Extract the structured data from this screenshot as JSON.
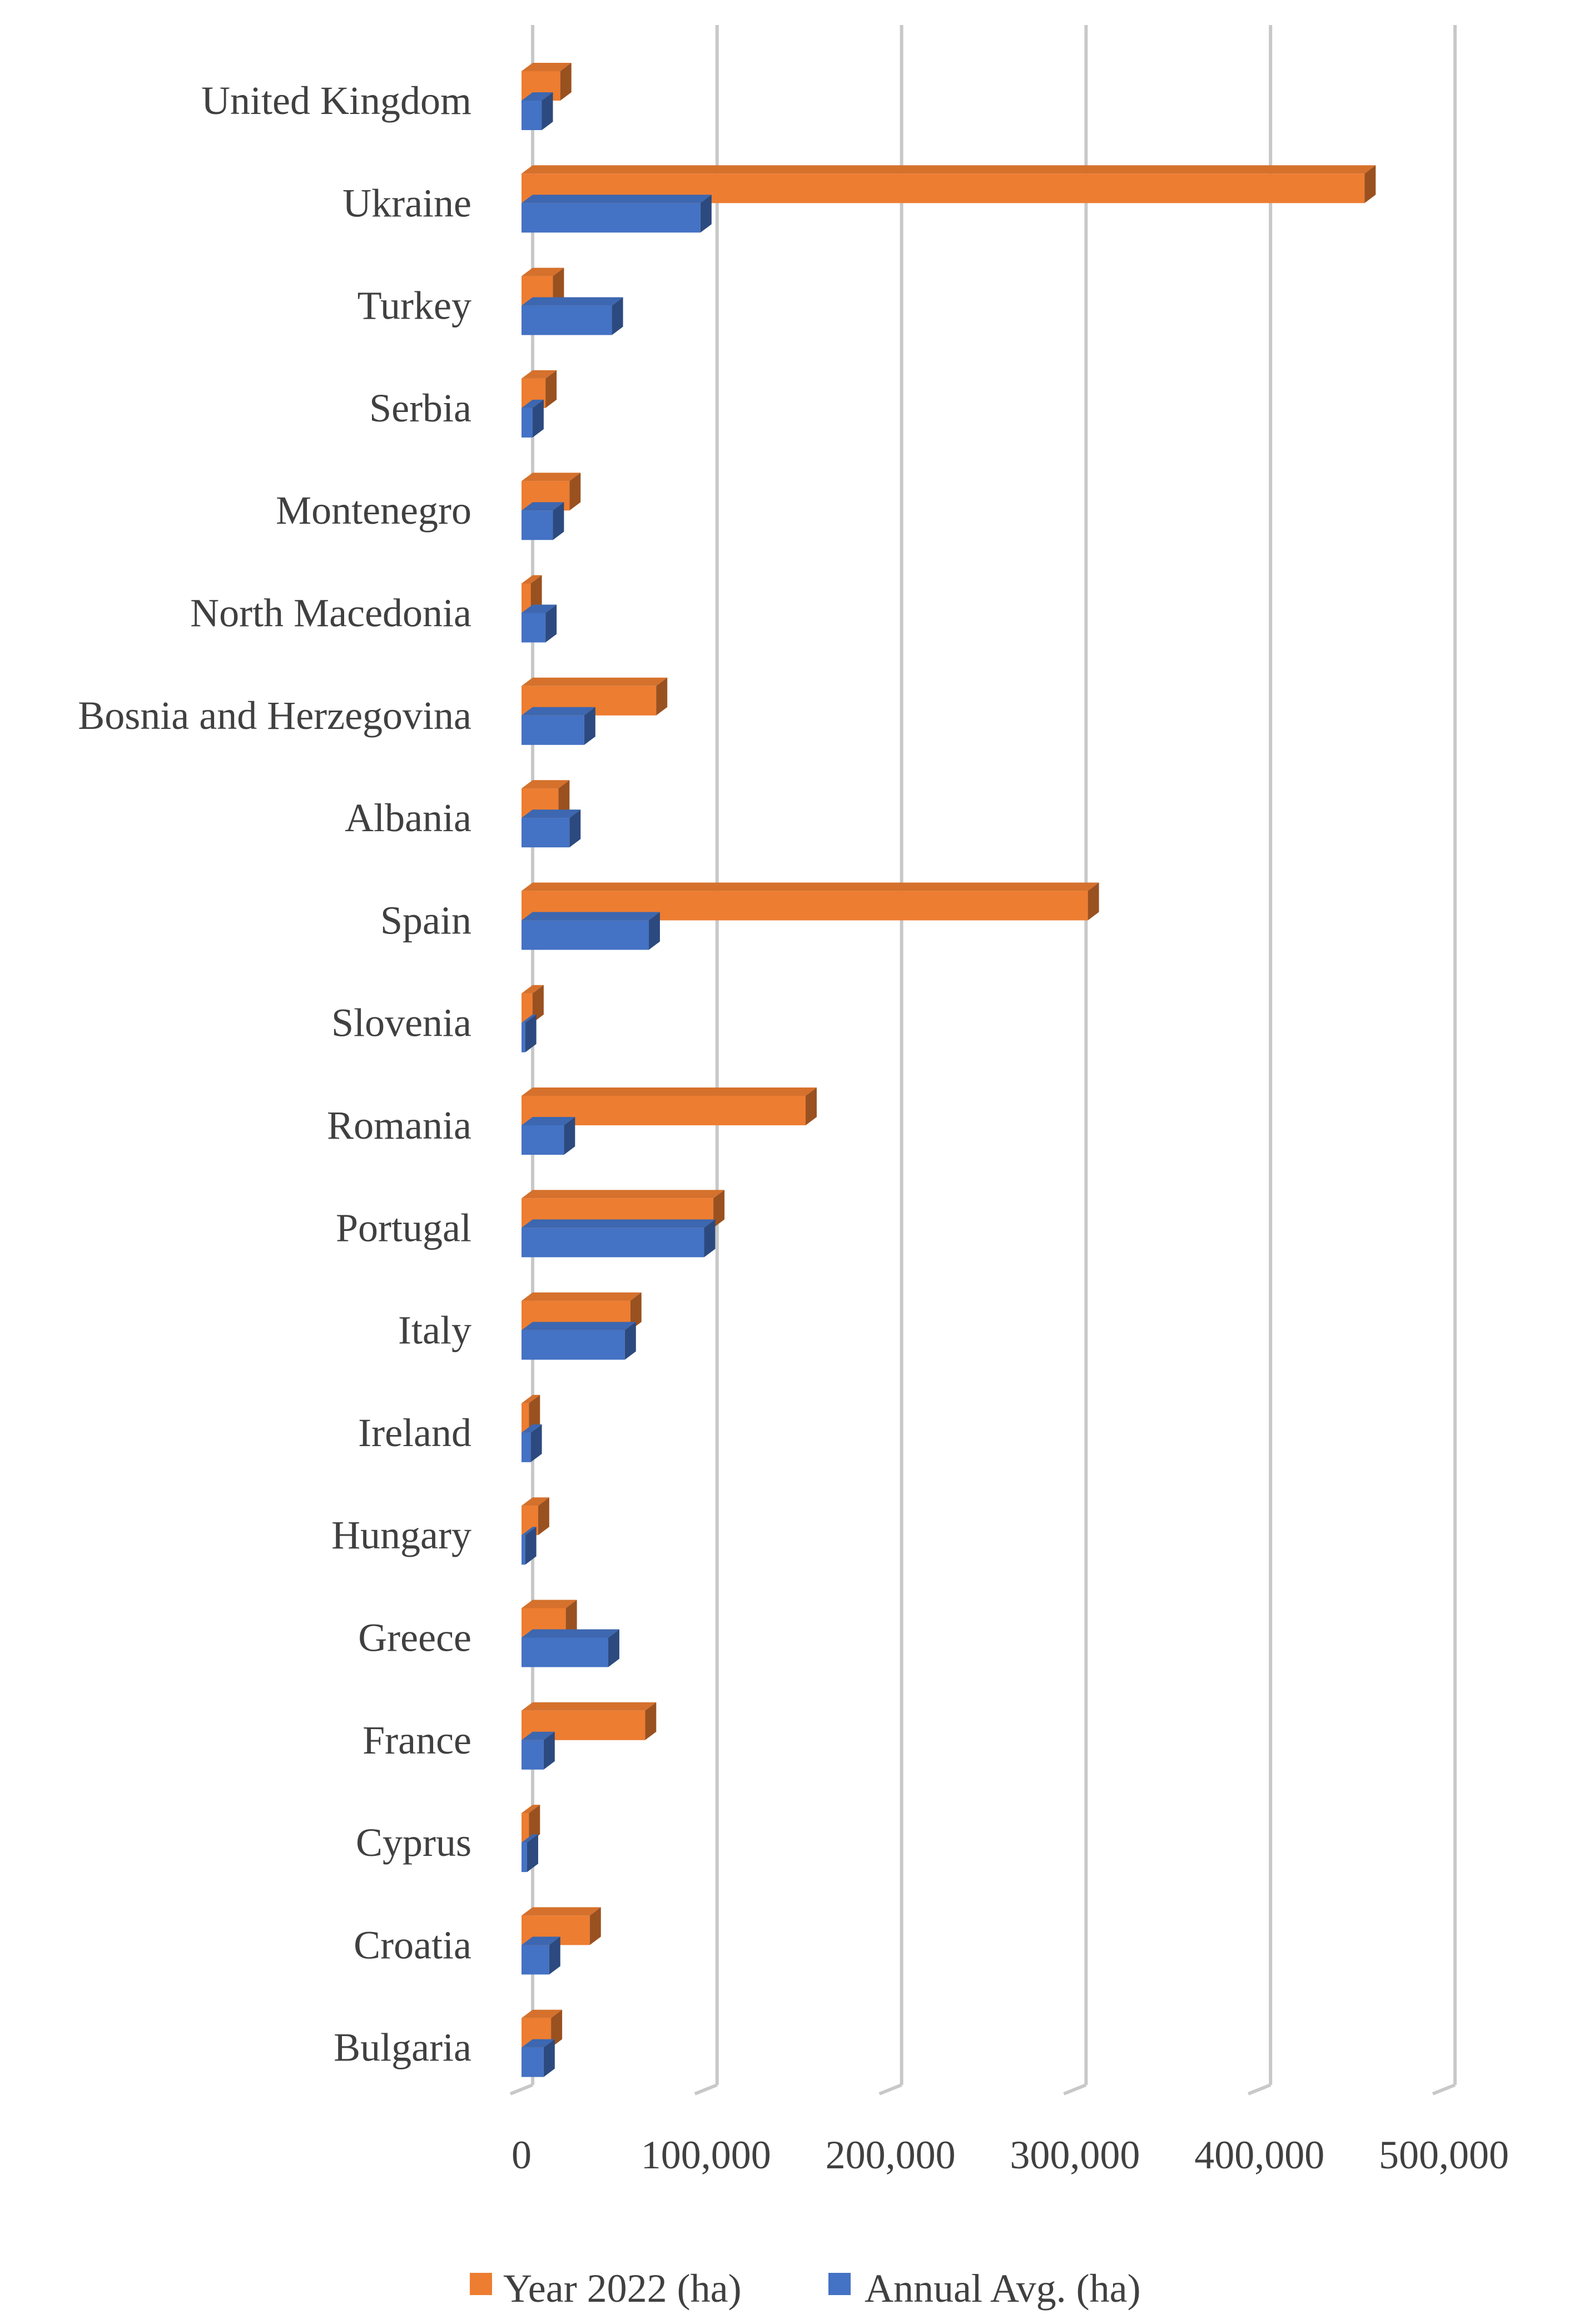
{
  "chart_data": {
    "type": "bar",
    "orientation": "horizontal",
    "style": "3d-clustered",
    "categories": [
      "United Kingdom",
      "Ukraine",
      "Turkey",
      "Serbia",
      "Montenegro",
      "North Macedonia",
      "Bosnia and Herzegovina",
      "Albania",
      "Spain",
      "Slovenia",
      "Romania",
      "Portugal",
      "Italy",
      "Ireland",
      "Hungary",
      "Greece",
      "France",
      "Cyprus",
      "Croatia",
      "Bulgaria"
    ],
    "series": [
      {
        "name": "Year 2022 (ha)",
        "color": "#ED7D31",
        "values": [
          21000,
          457000,
          17000,
          13000,
          26000,
          5000,
          73000,
          20000,
          307000,
          6000,
          154000,
          104000,
          59000,
          4000,
          9000,
          24000,
          67000,
          4000,
          37000,
          16000
        ]
      },
      {
        "name": "Annual Avg. (ha)",
        "color": "#4472C4",
        "values": [
          11000,
          97000,
          49000,
          6000,
          17000,
          13000,
          34000,
          26000,
          69000,
          2000,
          23000,
          99000,
          56000,
          5000,
          2000,
          47000,
          12000,
          3000,
          15000,
          12000
        ]
      }
    ],
    "xlim": [
      0,
      500000
    ],
    "xticks": [
      "0",
      "100,000",
      "200,000",
      "300,000",
      "400,000",
      "500,000"
    ],
    "grid": true,
    "legend_position": "bottom",
    "title": "",
    "xlabel": "",
    "ylabel": ""
  }
}
